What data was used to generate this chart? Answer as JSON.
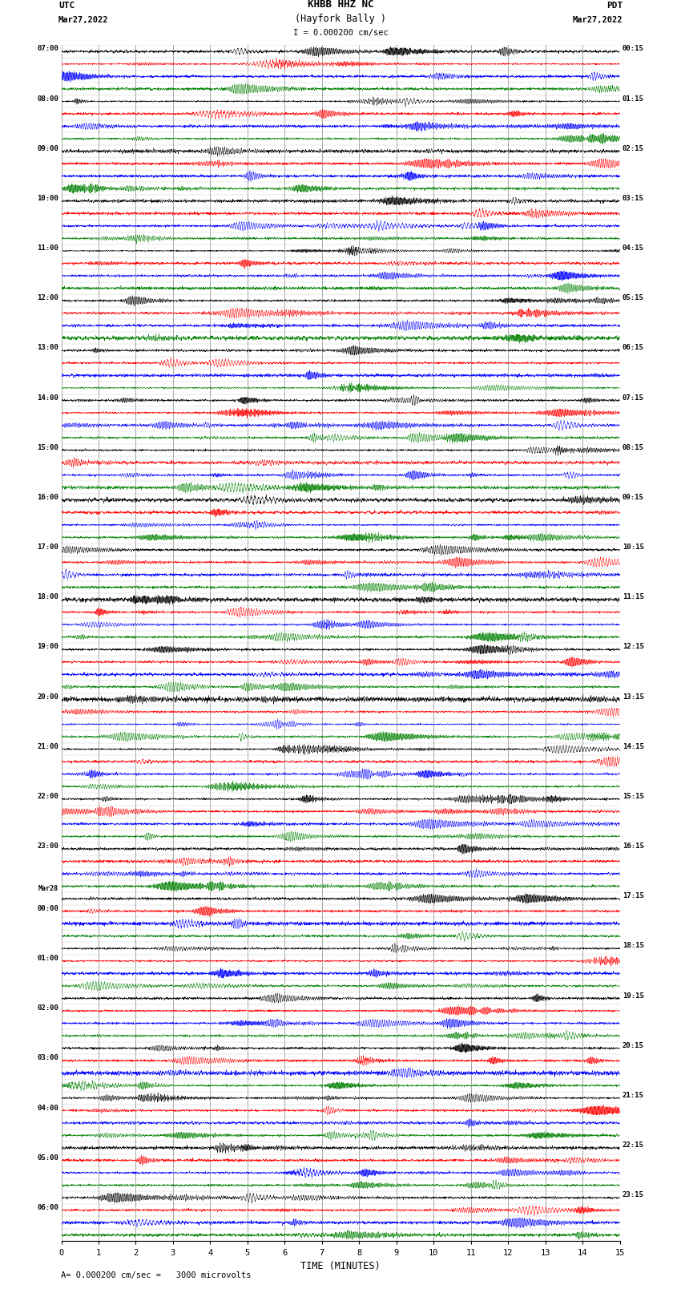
{
  "title_line1": "KHBB HHZ NC",
  "title_line2": "(Hayfork Bally )",
  "title_line3": "I = 0.000200 cm/sec",
  "left_top_label1": "UTC",
  "left_top_label2": "Mar27,2022",
  "right_top_label1": "PDT",
  "right_top_label2": "Mar27,2022",
  "bottom_xlabel": "TIME (MINUTES)",
  "bottom_note": "= 0.000200 cm/sec =   3000 microvolts",
  "xlim": [
    0,
    15
  ],
  "xticks": [
    0,
    1,
    2,
    3,
    4,
    5,
    6,
    7,
    8,
    9,
    10,
    11,
    12,
    13,
    14,
    15
  ],
  "bg_color": "#ffffff",
  "trace_colors": [
    "black",
    "red",
    "blue",
    "green"
  ],
  "n_rows": 96,
  "fig_width": 8.5,
  "fig_height": 16.13,
  "left_times_utc": [
    "07:00",
    "",
    "",
    "",
    "08:00",
    "",
    "",
    "",
    "09:00",
    "",
    "",
    "",
    "10:00",
    "",
    "",
    "",
    "11:00",
    "",
    "",
    "",
    "12:00",
    "",
    "",
    "",
    "13:00",
    "",
    "",
    "",
    "14:00",
    "",
    "",
    "",
    "15:00",
    "",
    "",
    "",
    "16:00",
    "",
    "",
    "",
    "17:00",
    "",
    "",
    "",
    "18:00",
    "",
    "",
    "",
    "19:00",
    "",
    "",
    "",
    "20:00",
    "",
    "",
    "",
    "21:00",
    "",
    "",
    "",
    "22:00",
    "",
    "",
    "",
    "23:00",
    "",
    "",
    "",
    "Mar28",
    "00:00",
    "",
    "",
    "",
    "01:00",
    "",
    "",
    "",
    "02:00",
    "",
    "",
    "",
    "03:00",
    "",
    "",
    "",
    "04:00",
    "",
    "",
    "",
    "05:00",
    "",
    "",
    "",
    "06:00",
    "",
    ""
  ],
  "right_times_pdt": [
    "00:15",
    "",
    "",
    "",
    "01:15",
    "",
    "",
    "",
    "02:15",
    "",
    "",
    "",
    "03:15",
    "",
    "",
    "",
    "04:15",
    "",
    "",
    "",
    "05:15",
    "",
    "",
    "",
    "06:15",
    "",
    "",
    "",
    "07:15",
    "",
    "",
    "",
    "08:15",
    "",
    "",
    "",
    "09:15",
    "",
    "",
    "",
    "10:15",
    "",
    "",
    "",
    "11:15",
    "",
    "",
    "",
    "12:15",
    "",
    "",
    "",
    "13:15",
    "",
    "",
    "",
    "14:15",
    "",
    "",
    "",
    "15:15",
    "",
    "",
    "",
    "16:15",
    "",
    "",
    "",
    "17:15",
    "",
    "",
    "",
    "18:15",
    "",
    "",
    "",
    "19:15",
    "",
    "",
    "",
    "20:15",
    "",
    "",
    "",
    "21:15",
    "",
    "",
    "",
    "22:15",
    "",
    "",
    "",
    "23:15",
    "",
    ""
  ]
}
